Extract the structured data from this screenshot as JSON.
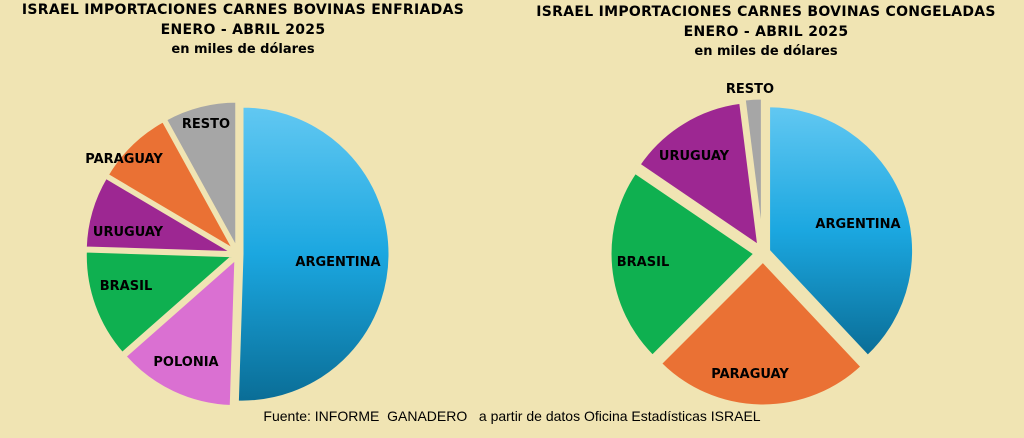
{
  "chart_data": [
    {
      "type": "pie",
      "title": "ISRAEL IMPORTACIONES CARNES BOVINAS ENFRIADAS",
      "subtitle": "ENERO - ABRIL 2025",
      "unit_label": "en miles de dólares",
      "slices": [
        {
          "label": "ARGENTINA",
          "value": 50.5,
          "color_top": "#62c8f2",
          "color_mid": "#1ba7e0",
          "color_bottom": "#0a6d96"
        },
        {
          "label": "POLONIA",
          "value": 13.0,
          "color": "#da70d2"
        },
        {
          "label": "BRASIL",
          "value": 12.0,
          "color": "#0fb050"
        },
        {
          "label": "URUGUAY",
          "value": 8.0,
          "color": "#9d2792"
        },
        {
          "label": "PARAGUAY",
          "value": 8.5,
          "color": "#ea7134"
        },
        {
          "label": "RESTO",
          "value": 8.0,
          "color": "#a6a6a6"
        }
      ]
    },
    {
      "type": "pie",
      "title": "ISRAEL IMPORTACIONES CARNES BOVINAS CONGELADAS",
      "subtitle": "ENERO - ABRIL 2025",
      "unit_label": "en miles de dólares",
      "slices": [
        {
          "label": "ARGENTINA",
          "value": 38.0,
          "color_top": "#62c8f2",
          "color_mid": "#1ba7e0",
          "color_bottom": "#0a6d96"
        },
        {
          "label": "PARAGUAY",
          "value": 24.5,
          "color": "#ea7134"
        },
        {
          "label": "BRASIL",
          "value": 22.0,
          "color": "#0fb050"
        },
        {
          "label": "URUGUAY",
          "value": 13.5,
          "color": "#9d2792"
        },
        {
          "label": "RESTO",
          "value": 2.0,
          "color": "#a6a6a6"
        }
      ]
    }
  ],
  "source": "Fuente: INFORME  GANADERO   a partir de datos Oficina Estadísticas ISRAEL",
  "colors": {
    "background": "#f0e4b3",
    "slice_border": "#f0e4b3"
  }
}
